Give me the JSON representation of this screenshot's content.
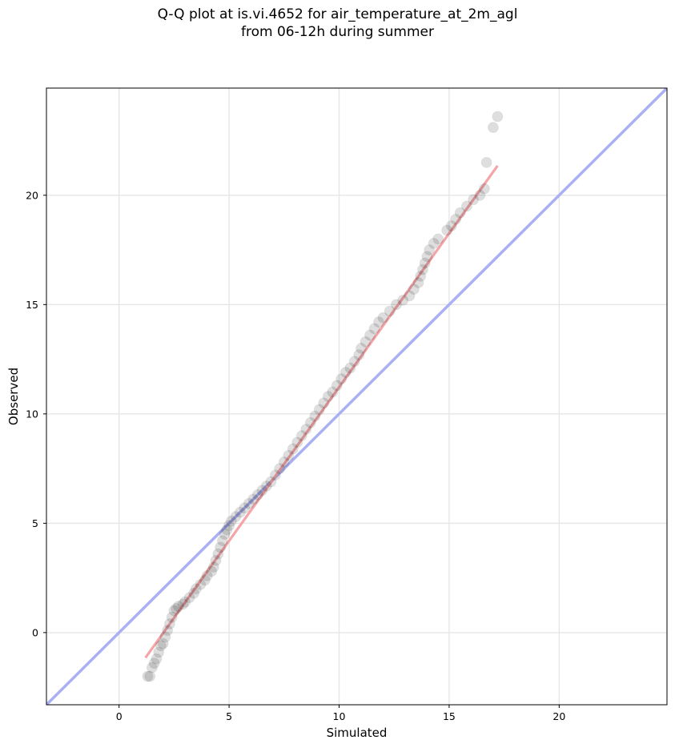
{
  "chart_data": {
    "type": "scatter",
    "title": "Q-Q plot at is.vi.4652 for air_temperature_at_2m_agl",
    "subtitle": "from 06-12h during summer",
    "xlabel": "Simulated",
    "ylabel": "Observed",
    "xlim": [
      -3.3,
      24.9
    ],
    "ylim": [
      -3.3,
      24.9
    ],
    "xticks": [
      0,
      5,
      10,
      15,
      20
    ],
    "yticks": [
      0,
      5,
      10,
      15,
      20
    ],
    "grid": true,
    "series": [
      {
        "marker": "circle",
        "color": "#000000",
        "points": [
          [
            1.3,
            -2.0
          ],
          [
            1.4,
            -2.0
          ],
          [
            1.5,
            -1.6
          ],
          [
            1.6,
            -1.4
          ],
          [
            1.7,
            -1.2
          ],
          [
            1.8,
            -0.9
          ],
          [
            1.9,
            -0.6
          ],
          [
            2.0,
            -0.5
          ],
          [
            2.1,
            -0.2
          ],
          [
            2.2,
            0.1
          ],
          [
            2.3,
            0.4
          ],
          [
            2.4,
            0.7
          ],
          [
            2.5,
            1.0
          ],
          [
            2.6,
            1.1
          ],
          [
            2.7,
            1.2
          ],
          [
            2.9,
            1.3
          ],
          [
            3.0,
            1.4
          ],
          [
            3.2,
            1.6
          ],
          [
            3.4,
            1.8
          ],
          [
            3.5,
            2.0
          ],
          [
            3.7,
            2.2
          ],
          [
            3.9,
            2.4
          ],
          [
            4.0,
            2.6
          ],
          [
            4.2,
            2.8
          ],
          [
            4.3,
            3.0
          ],
          [
            4.4,
            3.3
          ],
          [
            4.5,
            3.6
          ],
          [
            4.6,
            3.9
          ],
          [
            4.7,
            4.2
          ],
          [
            4.8,
            4.5
          ],
          [
            4.9,
            4.7
          ],
          [
            5.0,
            4.9
          ],
          [
            5.1,
            5.1
          ],
          [
            5.3,
            5.3
          ],
          [
            5.5,
            5.5
          ],
          [
            5.7,
            5.7
          ],
          [
            5.9,
            5.9
          ],
          [
            6.1,
            6.1
          ],
          [
            6.3,
            6.3
          ],
          [
            6.5,
            6.5
          ],
          [
            6.7,
            6.7
          ],
          [
            6.9,
            6.9
          ],
          [
            7.1,
            7.2
          ],
          [
            7.3,
            7.5
          ],
          [
            7.5,
            7.8
          ],
          [
            7.7,
            8.1
          ],
          [
            7.9,
            8.4
          ],
          [
            8.1,
            8.7
          ],
          [
            8.3,
            9.0
          ],
          [
            8.5,
            9.3
          ],
          [
            8.7,
            9.6
          ],
          [
            8.9,
            9.9
          ],
          [
            9.1,
            10.2
          ],
          [
            9.3,
            10.5
          ],
          [
            9.5,
            10.8
          ],
          [
            9.7,
            11.0
          ],
          [
            9.9,
            11.3
          ],
          [
            10.1,
            11.6
          ],
          [
            10.3,
            11.9
          ],
          [
            10.5,
            12.1
          ],
          [
            10.7,
            12.4
          ],
          [
            10.9,
            12.7
          ],
          [
            11.0,
            13.0
          ],
          [
            11.2,
            13.3
          ],
          [
            11.4,
            13.6
          ],
          [
            11.6,
            13.9
          ],
          [
            11.8,
            14.2
          ],
          [
            12.0,
            14.4
          ],
          [
            12.3,
            14.7
          ],
          [
            12.6,
            15.0
          ],
          [
            12.9,
            15.2
          ],
          [
            13.2,
            15.4
          ],
          [
            13.4,
            15.7
          ],
          [
            13.6,
            16.0
          ],
          [
            13.7,
            16.3
          ],
          [
            13.8,
            16.6
          ],
          [
            13.9,
            16.9
          ],
          [
            14.0,
            17.2
          ],
          [
            14.1,
            17.5
          ],
          [
            14.3,
            17.8
          ],
          [
            14.5,
            18.0
          ],
          [
            14.9,
            18.4
          ],
          [
            15.1,
            18.6
          ],
          [
            15.3,
            18.9
          ],
          [
            15.5,
            19.2
          ],
          [
            15.8,
            19.5
          ],
          [
            16.1,
            19.8
          ],
          [
            16.4,
            20.0
          ],
          [
            16.6,
            20.3
          ],
          [
            16.7,
            21.5
          ],
          [
            17.0,
            23.1
          ],
          [
            17.2,
            23.6
          ]
        ]
      }
    ],
    "lines": [
      {
        "kind": "identity",
        "color": "#aab0f4",
        "from": [
          -3.3,
          -3.3
        ],
        "to": [
          24.9,
          24.9
        ]
      },
      {
        "kind": "fit",
        "color": "#f4a5a8",
        "from": [
          1.2,
          -1.15
        ],
        "to": [
          17.2,
          21.35
        ]
      }
    ]
  }
}
